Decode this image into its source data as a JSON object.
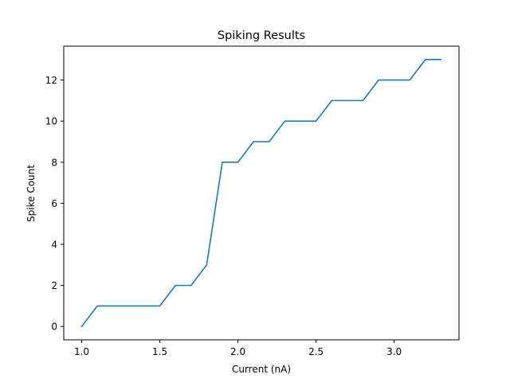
{
  "chart_data": {
    "type": "line",
    "title": "Spiking Results",
    "xlabel": "Current (nA)",
    "ylabel": "Spike Count",
    "xlim": [
      0.885,
      3.415
    ],
    "ylim": [
      -0.65,
      13.65
    ],
    "xticks": [
      1.0,
      1.5,
      2.0,
      2.5,
      3.0
    ],
    "xtick_labels": [
      "1.0",
      "1.5",
      "2.0",
      "2.5",
      "3.0"
    ],
    "yticks": [
      0,
      2,
      4,
      6,
      8,
      10,
      12
    ],
    "ytick_labels": [
      "0",
      "2",
      "4",
      "6",
      "8",
      "10",
      "12"
    ],
    "grid": false,
    "series": [
      {
        "color": "#1f77b4",
        "x": [
          1.0,
          1.1,
          1.2,
          1.3,
          1.4,
          1.5,
          1.6,
          1.7,
          1.8,
          1.9,
          2.0,
          2.1,
          2.2,
          2.3,
          2.4,
          2.5,
          2.6,
          2.7,
          2.8,
          2.9,
          3.0,
          3.1,
          3.2,
          3.3
        ],
        "y": [
          0,
          1,
          1,
          1,
          1,
          1,
          2,
          2,
          3,
          8,
          8,
          9,
          9,
          10,
          10,
          10,
          11,
          11,
          11,
          12,
          12,
          12,
          13,
          13
        ]
      }
    ]
  }
}
